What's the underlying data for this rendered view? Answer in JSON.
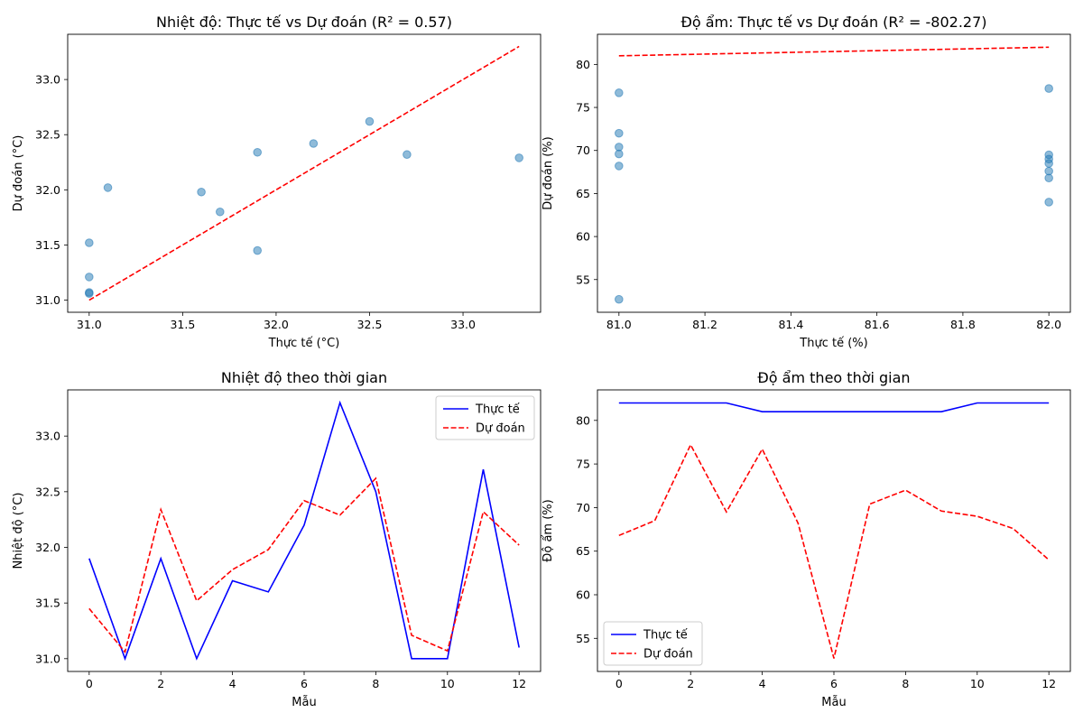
{
  "chart_data": [
    {
      "type": "scatter",
      "title": "Nhiệt độ: Thực tế vs Dự đoán (R² = 0.57)",
      "xlabel": "Thực tế (°C)",
      "ylabel": "Dự đoán (°C)",
      "xlim": [
        30.885,
        33.415
      ],
      "ylim": [
        30.89,
        33.41
      ],
      "xticks": [
        31.0,
        31.5,
        32.0,
        32.5,
        33.0
      ],
      "yticks": [
        31.0,
        31.5,
        32.0,
        32.5,
        33.0
      ],
      "xtick_labels": [
        "31.0",
        "31.5",
        "32.0",
        "32.5",
        "33.0"
      ],
      "ytick_labels": [
        "31.0",
        "31.5",
        "32.0",
        "32.5",
        "33.0"
      ],
      "points": [
        [
          31.9,
          31.45
        ],
        [
          31.0,
          31.06
        ],
        [
          31.9,
          32.34
        ],
        [
          31.0,
          31.52
        ],
        [
          31.7,
          31.8
        ],
        [
          31.6,
          31.98
        ],
        [
          32.2,
          32.42
        ],
        [
          33.3,
          32.29
        ],
        [
          32.5,
          32.62
        ],
        [
          31.0,
          31.21
        ],
        [
          31.0,
          31.07
        ],
        [
          32.7,
          32.32
        ],
        [
          31.1,
          32.02
        ]
      ],
      "reference_line": {
        "from": [
          31.0,
          31.0
        ],
        "to": [
          33.3,
          33.3
        ],
        "style": "dashed",
        "color": "#ff0000"
      },
      "point_color": "#1f77b4",
      "grid": false
    },
    {
      "type": "scatter",
      "title": "Độ ẩm: Thực tế vs Dự đoán (R² = -802.27)",
      "xlabel": "Thực tế (%)",
      "ylabel": "Dự đoán (%)",
      "xlim": [
        80.95,
        82.05
      ],
      "ylim": [
        51.2,
        83.5
      ],
      "xticks": [
        81.0,
        81.2,
        81.4,
        81.6,
        81.8,
        82.0
      ],
      "yticks": [
        55,
        60,
        65,
        70,
        75,
        80
      ],
      "xtick_labels": [
        "81.0",
        "81.2",
        "81.4",
        "81.6",
        "81.8",
        "82.0"
      ],
      "ytick_labels": [
        "55",
        "60",
        "65",
        "70",
        "75",
        "80"
      ],
      "points": [
        [
          82,
          66.8
        ],
        [
          82,
          68.5
        ],
        [
          82,
          77.2
        ],
        [
          82,
          69.5
        ],
        [
          81,
          76.7
        ],
        [
          81,
          68.2
        ],
        [
          81,
          52.7
        ],
        [
          81,
          70.4
        ],
        [
          81,
          72.0
        ],
        [
          81,
          69.6
        ],
        [
          82,
          69.0
        ],
        [
          82,
          67.6
        ],
        [
          82,
          64.0
        ]
      ],
      "reference_line": {
        "from": [
          81,
          81
        ],
        "to": [
          82,
          82
        ],
        "style": "dashed",
        "color": "#ff0000"
      },
      "point_color": "#1f77b4",
      "grid": false
    },
    {
      "type": "line",
      "title": "Nhiệt độ theo thời gian",
      "xlabel": "Mẫu",
      "ylabel": "Nhiệt độ (°C)",
      "xlim": [
        -0.6,
        12.6
      ],
      "ylim": [
        30.885,
        33.415
      ],
      "xticks": [
        0,
        2,
        4,
        6,
        8,
        10,
        12
      ],
      "yticks": [
        31.0,
        31.5,
        32.0,
        32.5,
        33.0
      ],
      "xtick_labels": [
        "0",
        "2",
        "4",
        "6",
        "8",
        "10",
        "12"
      ],
      "ytick_labels": [
        "31.0",
        "31.5",
        "32.0",
        "32.5",
        "33.0"
      ],
      "x": [
        0,
        1,
        2,
        3,
        4,
        5,
        6,
        7,
        8,
        9,
        10,
        11,
        12
      ],
      "series": [
        {
          "name": "Thực tế",
          "color": "#0000ff",
          "style": "solid",
          "values": [
            31.9,
            31.0,
            31.9,
            31.0,
            31.7,
            31.6,
            32.2,
            33.3,
            32.5,
            31.0,
            31.0,
            32.7,
            31.1
          ]
        },
        {
          "name": "Dự đoán",
          "color": "#ff0000",
          "style": "dashed",
          "values": [
            31.45,
            31.06,
            32.34,
            31.52,
            31.8,
            31.98,
            32.42,
            32.29,
            32.62,
            31.21,
            31.07,
            32.32,
            32.02
          ]
        }
      ],
      "legend": "top-right",
      "grid": false
    },
    {
      "type": "line",
      "title": "Độ ẩm theo thời gian",
      "xlabel": "Mẫu",
      "ylabel": "Độ ẩm (%)",
      "xlim": [
        -0.6,
        12.6
      ],
      "ylim": [
        51.2,
        83.5
      ],
      "xticks": [
        0,
        2,
        4,
        6,
        8,
        10,
        12
      ],
      "yticks": [
        55,
        60,
        65,
        70,
        75,
        80
      ],
      "xtick_labels": [
        "0",
        "2",
        "4",
        "6",
        "8",
        "10",
        "12"
      ],
      "ytick_labels": [
        "55",
        "60",
        "65",
        "70",
        "75",
        "80"
      ],
      "x": [
        0,
        1,
        2,
        3,
        4,
        5,
        6,
        7,
        8,
        9,
        10,
        11,
        12
      ],
      "series": [
        {
          "name": "Thực tế",
          "color": "#0000ff",
          "style": "solid",
          "values": [
            82,
            82,
            82,
            82,
            81,
            81,
            81,
            81,
            81,
            81,
            82,
            82,
            82
          ]
        },
        {
          "name": "Dự đoán",
          "color": "#ff0000",
          "style": "dashed",
          "values": [
            66.8,
            68.5,
            77.2,
            69.5,
            76.7,
            68.2,
            52.7,
            70.4,
            72.0,
            69.6,
            69.0,
            67.6,
            64.0
          ]
        }
      ],
      "legend": "bottom-left",
      "grid": false
    }
  ]
}
